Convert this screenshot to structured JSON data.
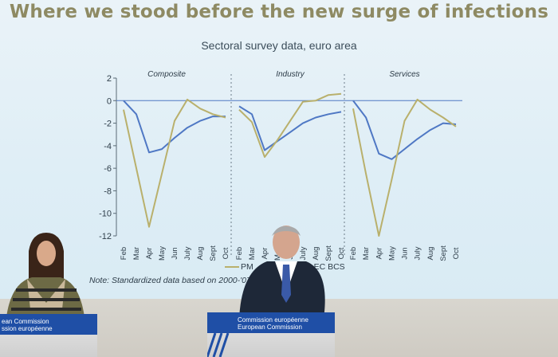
{
  "slide": {
    "title": "Where we stood before the new surge of infections",
    "subtitle": "Sectoral survey data, euro area",
    "note": "Note: Standardized data based on 2000-'07",
    "legend_visible": [
      "PM",
      "EC BCS"
    ]
  },
  "chart_data": {
    "type": "line",
    "panels": [
      {
        "title": "Composite",
        "categories": [
          "Feb",
          "Mar",
          "Apr",
          "May",
          "Jun",
          "July",
          "Aug",
          "Sept",
          "Oct"
        ],
        "series": [
          {
            "color": "#4f78c4",
            "values": [
              0,
              -1.2,
              -4.6,
              -4.3,
              -3.3,
              -2.4,
              -1.8,
              -1.4,
              -1.4
            ]
          },
          {
            "color": "#b9b06c",
            "values": [
              -0.8,
              -6,
              -11.2,
              -6.5,
              -1.8,
              0.1,
              -0.7,
              -1.2,
              -1.5
            ]
          }
        ]
      },
      {
        "title": "Industry",
        "categories": [
          "Feb",
          "Mar",
          "Apr",
          "May",
          "Jun",
          "July",
          "Aug",
          "Sept",
          "Oct"
        ],
        "series": [
          {
            "color": "#4f78c4",
            "values": [
              -0.5,
              -1.2,
              -4.4,
              -3.6,
              -2.8,
              -2,
              -1.5,
              -1.2,
              -1.0
            ]
          },
          {
            "color": "#b9b06c",
            "values": [
              -0.8,
              -1.9,
              -5,
              -3.5,
              -1.8,
              -0.1,
              0,
              0.5,
              0.6
            ]
          }
        ]
      },
      {
        "title": "Services",
        "categories": [
          "Feb",
          "Mar",
          "Apr",
          "May",
          "Jun",
          "July",
          "Aug",
          "Sept",
          "Oct"
        ],
        "series": [
          {
            "color": "#4f78c4",
            "values": [
              0,
              -1.5,
              -4.7,
              -5.2,
              -4.3,
              -3.4,
              -2.6,
              -2.0,
              -2.1
            ]
          },
          {
            "color": "#b9b06c",
            "values": [
              -0.7,
              -6.5,
              -12,
              -7,
              -1.8,
              0.1,
              -0.8,
              -1.5,
              -2.3
            ]
          }
        ]
      }
    ],
    "ylim": [
      -12,
      2
    ],
    "yticks": [
      2,
      0,
      -2,
      -4,
      -6,
      -8,
      -10,
      -12
    ]
  },
  "podiums": [
    {
      "line1": "ean Commission",
      "line2": "ssion européenne"
    },
    {
      "line1": "Commission européenne",
      "line2": "European Commission"
    }
  ],
  "colors": {
    "blue": "#4f78c4",
    "olive": "#b9b06c",
    "title": "#8e8a63",
    "podium_band": "#1f4fa6"
  }
}
